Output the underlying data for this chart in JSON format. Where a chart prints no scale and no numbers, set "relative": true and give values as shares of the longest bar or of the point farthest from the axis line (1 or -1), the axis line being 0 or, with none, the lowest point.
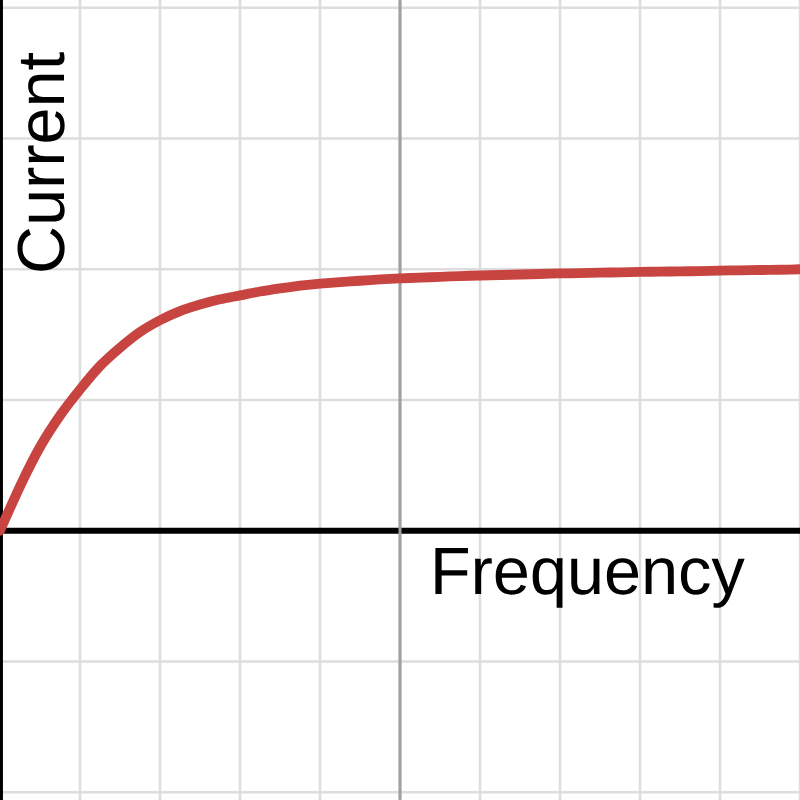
{
  "chart_data": {
    "type": "line",
    "xlabel": "Frequency",
    "ylabel": "Current",
    "relative": true,
    "grid": true,
    "categories": [
      null,
      null,
      null,
      null,
      null,
      null,
      null,
      null,
      null,
      null,
      null,
      null,
      null,
      null,
      null,
      null,
      null,
      null,
      null,
      null,
      null,
      null,
      null,
      null,
      null,
      null,
      null,
      null,
      null,
      null,
      null,
      null,
      null,
      null,
      null,
      null,
      null,
      null,
      null,
      null,
      null
    ],
    "series": [
      {
        "color": "#c74440",
        "values": [
          0,
          0.17,
          0.32,
          0.44,
          0.54,
          0.63,
          0.7,
          0.76,
          0.805,
          0.84,
          0.865,
          0.885,
          0.9,
          0.915,
          0.927,
          0.937,
          0.945,
          0.951,
          0.956,
          0.961,
          0.965,
          0.968,
          0.971,
          0.974,
          0.976,
          0.978,
          0.98,
          0.982,
          0.984,
          0.985,
          0.987,
          0.988,
          0.99,
          0.991,
          0.992,
          0.993,
          0.995,
          0.996,
          0.997,
          0.998,
          1.0
        ]
      }
    ]
  }
}
